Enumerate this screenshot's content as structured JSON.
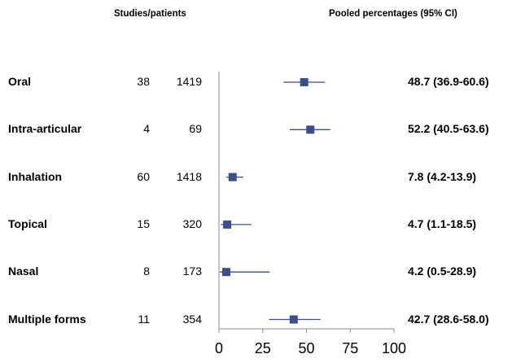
{
  "headers": {
    "studies_patients": "Studies/patients",
    "pooled": "Pooled percentages (95% CI)"
  },
  "chart_data": {
    "type": "forest",
    "title": "",
    "xlabel": "",
    "ylabel": "",
    "xlim": [
      0,
      100
    ],
    "x_ticks": [
      "0",
      "25",
      "50",
      "75",
      "100"
    ],
    "marker_color": "#3a4f8c",
    "rows": [
      {
        "label": "Oral",
        "studies": "38",
        "patients": "1419",
        "estimate": 48.7,
        "lower": 36.9,
        "upper": 60.6,
        "text": "48.7 (36.9-60.6)"
      },
      {
        "label": "Intra-articular",
        "studies": "4",
        "patients": "69",
        "estimate": 52.2,
        "lower": 40.5,
        "upper": 63.6,
        "text": "52.2 (40.5-63.6)"
      },
      {
        "label": "Inhalation",
        "studies": "60",
        "patients": "1418",
        "estimate": 7.8,
        "lower": 4.2,
        "upper": 13.9,
        "text": "7.8 (4.2-13.9)"
      },
      {
        "label": "Topical",
        "studies": "15",
        "patients": "320",
        "estimate": 4.7,
        "lower": 1.1,
        "upper": 18.5,
        "text": "4.7 (1.1-18.5)"
      },
      {
        "label": "Nasal",
        "studies": "8",
        "patients": "173",
        "estimate": 4.2,
        "lower": 0.5,
        "upper": 28.9,
        "text": "4.2 (0.5-28.9)"
      },
      {
        "label": "Multiple forms",
        "studies": "11",
        "patients": "354",
        "estimate": 42.7,
        "lower": 28.6,
        "upper": 58.0,
        "text": "42.7 (28.6-58.0)"
      }
    ]
  }
}
